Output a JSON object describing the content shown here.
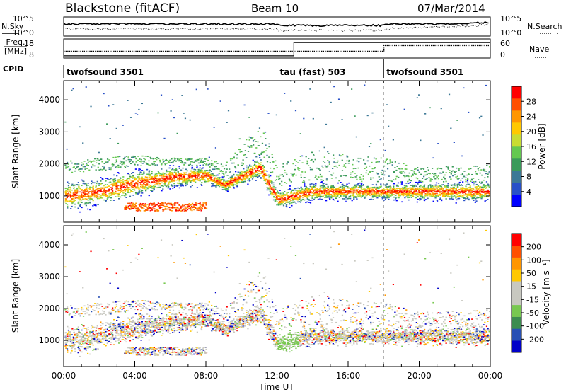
{
  "header": {
    "station": "Blackstone (fitACF)",
    "beam": "Beam 10",
    "date": "07/Mar/2014"
  },
  "noise_panel": {
    "left_label": "N.Sky",
    "right_label": "N.Search",
    "y_ticks": [
      "10^5",
      "10^0"
    ]
  },
  "freq_panel": {
    "left_label_line1": "Freq.",
    "left_label_line2": "[MHz]",
    "right_label": "Nave",
    "left_ticks": [
      "18",
      "8"
    ],
    "right_ticks": [
      "60",
      "0"
    ]
  },
  "cpid": {
    "label": "CPID",
    "segments": [
      {
        "name": "twofsound 3501",
        "start_hour": 0
      },
      {
        "name": "tau (fast) 503",
        "start_hour": 12.0
      },
      {
        "name": "twofsound 3501",
        "start_hour": 18.0
      }
    ]
  },
  "x_axis": {
    "title": "Time UT",
    "ticks": [
      "00:00",
      "04:00",
      "08:00",
      "12:00",
      "16:00",
      "20:00",
      "00:00"
    ],
    "tick_hours": [
      0,
      4,
      8,
      12,
      16,
      20,
      24
    ]
  },
  "chart_data": [
    {
      "type": "heatmap",
      "name": "power",
      "ylabel": "Slant Range [km]",
      "y_ticks": [
        "1000",
        "2000",
        "3000",
        "4000"
      ],
      "y_tick_values": [
        1000,
        2000,
        3000,
        4000
      ],
      "xlim": [
        0,
        24
      ],
      "ylim": [
        180,
        4600
      ],
      "colorbar": {
        "label": "Power [dB]",
        "ticks": [
          "28",
          "24",
          "20",
          "16",
          "12",
          "8",
          "4"
        ],
        "colors": [
          "#0000ff",
          "#2850c8",
          "#3c7896",
          "#3a9a5a",
          "#64c850",
          "#c8dc32",
          "#ffc800",
          "#ff9600",
          "#ff5000",
          "#ff0000"
        ]
      },
      "band_km": [
        {
          "hour": 0,
          "center": 1000,
          "low": 800,
          "high": 1700,
          "upper_scatter": 2100
        },
        {
          "hour": 2,
          "center": 1150,
          "low": 950,
          "high": 1800,
          "upper_scatter": 2200
        },
        {
          "hour": 4,
          "center": 1400,
          "low": 1100,
          "high": 1950,
          "upper_scatter": 2300
        },
        {
          "hour": 6,
          "center": 1600,
          "low": 1300,
          "high": 2000,
          "upper_scatter": 2200
        },
        {
          "hour": 8,
          "center": 1650,
          "low": 1400,
          "high": 1950,
          "upper_scatter": 2200
        },
        {
          "hour": 9,
          "center": 1350,
          "low": 1200,
          "high": 1600,
          "upper_scatter": 2000
        },
        {
          "hour": 11,
          "center": 1900,
          "low": 1600,
          "high": 2300,
          "upper_scatter": 3300
        },
        {
          "hour": 12,
          "center": 900,
          "low": 700,
          "high": 1300,
          "upper_scatter": 2000
        },
        {
          "hour": 14,
          "center": 1150,
          "low": 950,
          "high": 1500,
          "upper_scatter": 2400
        },
        {
          "hour": 18,
          "center": 1150,
          "low": 950,
          "high": 1450,
          "upper_scatter": 2200
        },
        {
          "hour": 20,
          "center": 1150,
          "low": 900,
          "high": 1450,
          "upper_scatter": 1900
        },
        {
          "hour": 24,
          "center": 1150,
          "low": 850,
          "high": 1450,
          "upper_scatter": 2000
        }
      ],
      "secondary_band": {
        "start_hour": 3.3,
        "end_hour": 8.0,
        "center": 700,
        "low": 550,
        "high": 800
      }
    },
    {
      "type": "heatmap",
      "name": "velocity",
      "ylabel": "Slant Range [km]",
      "y_ticks": [
        "1000",
        "2000",
        "3000",
        "4000"
      ],
      "y_tick_values": [
        1000,
        2000,
        3000,
        4000
      ],
      "xlim": [
        0,
        24
      ],
      "ylim": [
        180,
        4600
      ],
      "colorbar": {
        "label": "Velocity [m s⁻¹]",
        "ticks": [
          "200",
          "100",
          "50",
          "15",
          "-15",
          "-50",
          "-100",
          "-200"
        ],
        "colors": [
          "#0000c8",
          "#2850b4",
          "#3c8c50",
          "#78c850",
          "#c8c8c0",
          "#c8c8c0",
          "#ffc800",
          "#ff9600",
          "#ff5000",
          "#ff0000"
        ]
      }
    }
  ]
}
